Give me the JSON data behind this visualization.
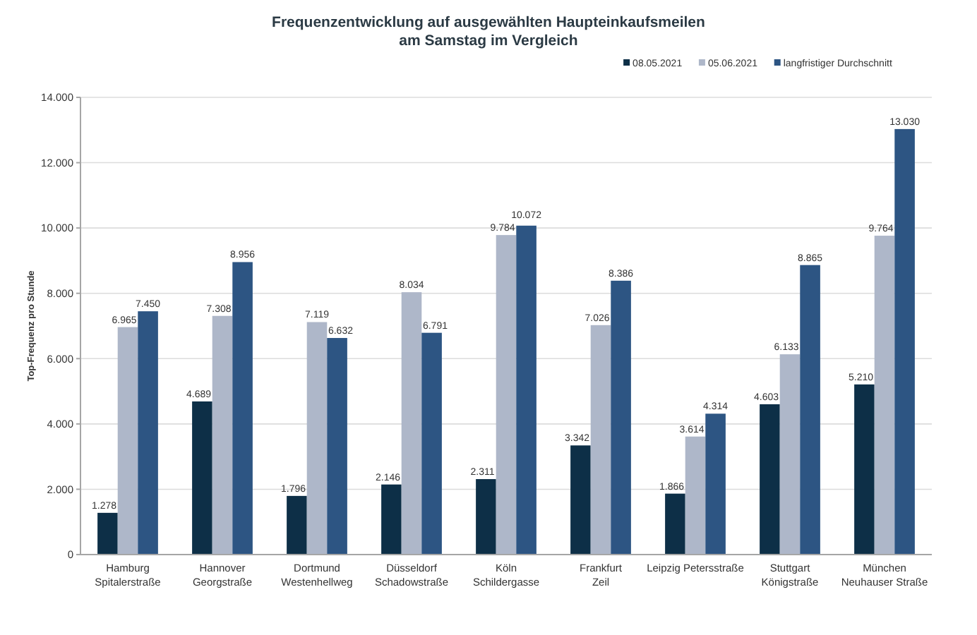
{
  "chart_data": {
    "type": "bar",
    "title": "Frequenzentwicklung auf ausgewählten Haupteinkaufsmeilen\nam Samstag im Vergleich",
    "ylabel": "Top-Frequenz pro Stunde",
    "categories": [
      "Hamburg\nSpitalerstraße",
      "Hannover\nGeorgstraße",
      "Dortmund\nWestenhellweg",
      "Düsseldorf\nSchadowstraße",
      "Köln\nSchildergasse",
      "Frankfurt\nZeil",
      "Leipzig Petersstraße",
      "Stuttgart\nKönigstraße",
      "München\nNeuhauser Straße"
    ],
    "series": [
      {
        "name": "08.05.2021",
        "color": "#0d2f47",
        "values": [
          1278,
          4689,
          1796,
          2146,
          2311,
          3342,
          1866,
          4603,
          5210
        ],
        "value_labels": [
          "1.278",
          "4.689",
          "1.796",
          "2.146",
          "2.311",
          "3.342",
          "1.866",
          "4.603",
          "5.210"
        ]
      },
      {
        "name": "05.06.2021",
        "color": "#aeb7c9",
        "values": [
          6965,
          7308,
          7119,
          8034,
          9784,
          7026,
          3614,
          6133,
          9764
        ],
        "value_labels": [
          "6.965",
          "7.308",
          "7.119",
          "8.034",
          "9.784",
          "7.026",
          "3.614",
          "6.133",
          "9.764"
        ]
      },
      {
        "name": "langfristiger Durchschnitt",
        "color": "#2d5583",
        "values": [
          7450,
          8956,
          6632,
          6791,
          10072,
          8386,
          4314,
          8865,
          13030
        ],
        "value_labels": [
          "7.450",
          "8.956",
          "6.632",
          "6.791",
          "10.072",
          "8.386",
          "4.314",
          "8.865",
          "13.030"
        ]
      }
    ],
    "ylim": [
      0,
      14000
    ],
    "yticks": [
      0,
      {
        "value": 2000,
        "label": "2.000"
      },
      {
        "value": 4000,
        "label": "4.000"
      },
      {
        "value": 6000,
        "label": "6.000"
      },
      {
        "value": 8000,
        "label": "8.000"
      },
      {
        "value": 10000,
        "label": "10.000"
      },
      {
        "value": 12000,
        "label": "12.000"
      },
      {
        "value": 14000,
        "label": "14.000"
      }
    ],
    "grid": "y",
    "legend": "top right"
  }
}
